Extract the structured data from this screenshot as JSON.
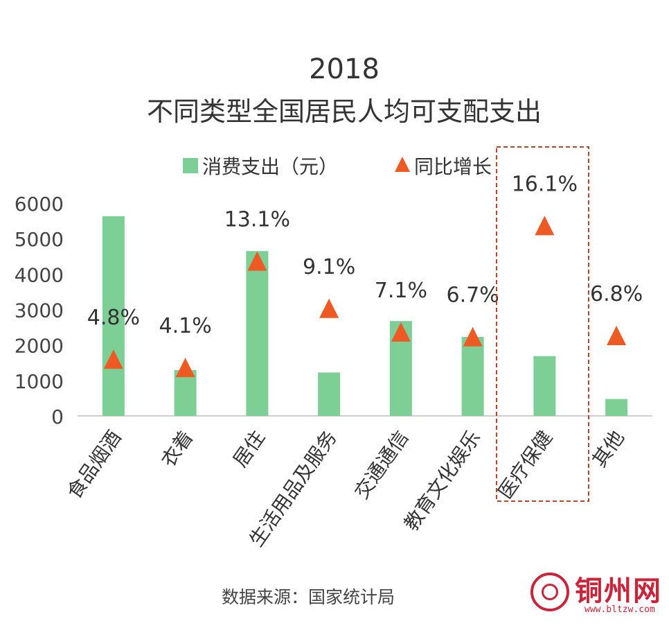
{
  "chart_data": {
    "type": "bar",
    "title": "2018",
    "subtitle": "不同类型全国居民人均可支配支出",
    "categories": [
      "食品烟酒",
      "衣着",
      "居住",
      "生活用品及服务",
      "交通通信",
      "教育文化娱乐",
      "医疗保健",
      "其他"
    ],
    "series": [
      {
        "name": "消费支出（元）",
        "type": "bar",
        "color": "#7dcf96",
        "values": [
          5631,
          1289,
          4647,
          1223,
          2675,
          2226,
          1685,
          477
        ]
      },
      {
        "name": "同比增长",
        "type": "scatter",
        "marker": "triangle",
        "color": "#ee5a24",
        "values": [
          4.8,
          4.1,
          13.1,
          9.1,
          7.1,
          6.7,
          16.1,
          6.8
        ],
        "labels": [
          "4.8%",
          "4.1%",
          "13.1%",
          "9.1%",
          "7.1%",
          "6.7%",
          "16.1%",
          "6.8%"
        ]
      }
    ],
    "yticks": [
      "0",
      "1000",
      "2000",
      "3000",
      "4000",
      "5000",
      "6000"
    ],
    "ylim": [
      0,
      6000
    ],
    "growth_axis_hidden": true,
    "growth_range": [
      0,
      18
    ],
    "legend_position": "top-center",
    "highlight_category": "医疗保健",
    "highlight_color": "#b5442a",
    "source": "数据来源：国家统计局"
  },
  "logo": {
    "name": "铜州网",
    "url": "www.bltzw.com",
    "color": "#c8243a"
  }
}
